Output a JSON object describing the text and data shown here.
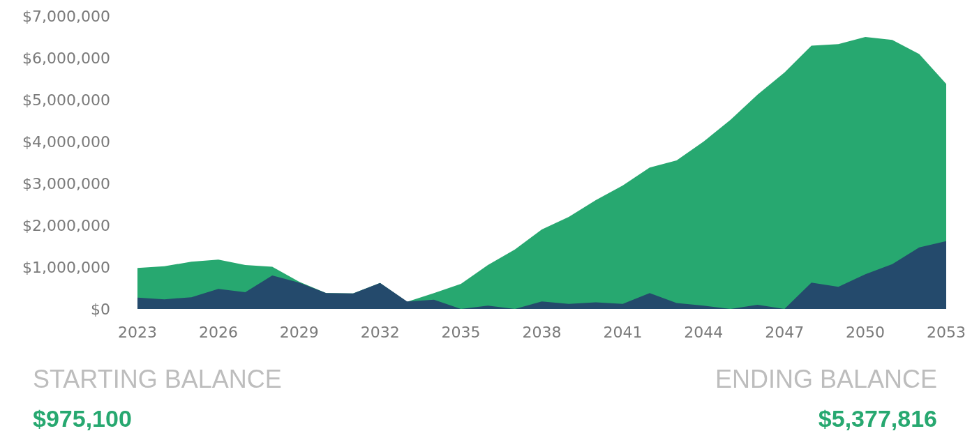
{
  "chart_data": {
    "type": "area",
    "x": [
      2023,
      2024,
      2025,
      2026,
      2027,
      2028,
      2029,
      2030,
      2031,
      2032,
      2033,
      2034,
      2035,
      2036,
      2037,
      2038,
      2039,
      2040,
      2041,
      2042,
      2043,
      2044,
      2045,
      2046,
      2047,
      2048,
      2049,
      2050,
      2051,
      2052,
      2053
    ],
    "series": [
      {
        "color": "#27a870",
        "values": [
          980000,
          1020000,
          1130000,
          1180000,
          1050000,
          1010000,
          650000,
          380000,
          370000,
          620000,
          170000,
          380000,
          600000,
          1050000,
          1420000,
          1900000,
          2200000,
          2600000,
          2950000,
          3380000,
          3550000,
          4000000,
          4520000,
          5120000,
          5650000,
          6290000,
          6330000,
          6500000,
          6430000,
          6090000,
          5380000
        ]
      },
      {
        "color": "#244a6c",
        "values": [
          270000,
          230000,
          280000,
          480000,
          400000,
          800000,
          630000,
          380000,
          370000,
          620000,
          180000,
          220000,
          0,
          80000,
          0,
          180000,
          120000,
          160000,
          120000,
          380000,
          140000,
          80000,
          0,
          100000,
          0,
          630000,
          530000,
          830000,
          1070000,
          1470000,
          1620000
        ]
      }
    ],
    "xlim": [
      2023,
      2053
    ],
    "xticks": [
      2023,
      2026,
      2029,
      2032,
      2035,
      2038,
      2041,
      2044,
      2047,
      2050,
      2053
    ],
    "ylim": [
      0,
      7000000
    ],
    "yticks": [
      {
        "value": 0,
        "label": "$0"
      },
      {
        "value": 1000000,
        "label": "$1,000,000"
      },
      {
        "value": 2000000,
        "label": "$2,000,000"
      },
      {
        "value": 3000000,
        "label": "$3,000,000"
      },
      {
        "value": 4000000,
        "label": "$4,000,000"
      },
      {
        "value": 5000000,
        "label": "$5,000,000"
      },
      {
        "value": 6000000,
        "label": "$6,000,000"
      },
      {
        "value": 7000000,
        "label": "$7,000,000"
      }
    ],
    "annotations": [
      "STARTING BALANCE",
      "$975,100",
      "ENDING BALANCE",
      "$5,377,816"
    ]
  }
}
